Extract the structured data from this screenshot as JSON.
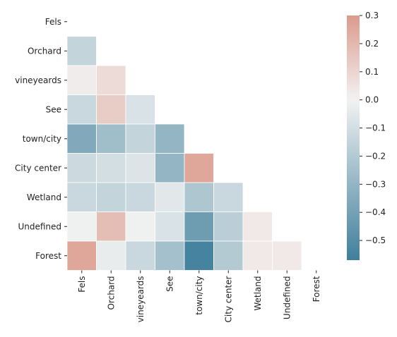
{
  "chart_data": {
    "type": "heatmap",
    "mask": "upper-triangle-including-diagonal",
    "row_labels": [
      "Fels",
      "Orchard",
      "vineyeards",
      "See",
      "town/city",
      "City center",
      "Wetland",
      "Undefined",
      "Forest"
    ],
    "col_labels": [
      "Fels",
      "Orchard",
      "vineyeards",
      "See",
      "town/city",
      "City center",
      "Wetland",
      "Undefined",
      "Forest"
    ],
    "values": [
      [
        null,
        null,
        null,
        null,
        null,
        null,
        null,
        null,
        null
      ],
      [
        -0.15,
        null,
        null,
        null,
        null,
        null,
        null,
        null,
        null
      ],
      [
        0.02,
        0.08,
        null,
        null,
        null,
        null,
        null,
        null,
        null
      ],
      [
        -0.13,
        0.13,
        -0.08,
        null,
        null,
        null,
        null,
        null,
        null
      ],
      [
        -0.36,
        -0.26,
        -0.15,
        -0.3,
        null,
        null,
        null,
        null,
        null
      ],
      [
        -0.12,
        -0.1,
        -0.07,
        -0.3,
        0.26,
        null,
        null,
        null,
        null
      ],
      [
        -0.13,
        -0.15,
        -0.13,
        -0.05,
        -0.22,
        -0.13,
        null,
        null,
        null
      ],
      [
        -0.01,
        0.18,
        -0.01,
        -0.08,
        -0.42,
        -0.18,
        0.03,
        null,
        null
      ],
      [
        0.26,
        -0.03,
        -0.13,
        -0.25,
        -0.55,
        -0.2,
        0.03,
        0.03,
        null
      ]
    ],
    "vmin": -0.57,
    "vmax": 0.3,
    "colormap": {
      "negative_end": "#3f7f9b",
      "center": "#f2f2f2",
      "positive_end": "#db9b8c"
    },
    "colorbar": {
      "ticks": [
        0.3,
        0.2,
        0.1,
        0.0,
        -0.1,
        -0.2,
        -0.3,
        -0.4,
        -0.5
      ],
      "tick_labels": [
        "0.3",
        "0.2",
        "0.1",
        "0.0",
        "−0.1",
        "−0.2",
        "−0.3",
        "−0.4",
        "−0.5"
      ]
    },
    "grid_lines": "white"
  }
}
